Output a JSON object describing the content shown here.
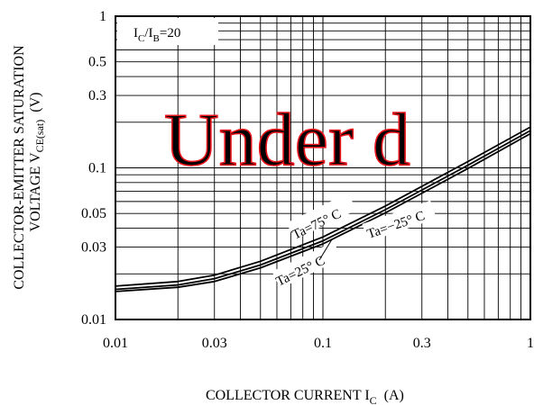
{
  "chart_data": {
    "type": "line",
    "x_scale": "log",
    "y_scale": "log",
    "xlim": [
      0.01,
      1
    ],
    "ylim": [
      0.01,
      1
    ],
    "grid": true,
    "xlabel": {
      "main": "COLLECTOR CURRENT I",
      "sub": "C",
      "unit": "(A)"
    },
    "ylabel": {
      "line1": "COLLECTOR-EMITTER SATURATION",
      "line2_main": "VOLTAGE V",
      "line2_sub": "CE(sat)",
      "line2_unit": "(V)"
    },
    "x_ticks": [
      {
        "value": 0.01,
        "label": "0.01"
      },
      {
        "value": 0.03,
        "label": "0.03"
      },
      {
        "value": 0.1,
        "label": "0.1"
      },
      {
        "value": 0.3,
        "label": "0.3"
      },
      {
        "value": 1,
        "label": "1"
      }
    ],
    "y_ticks": [
      {
        "value": 0.01,
        "label": "0.01"
      },
      {
        "value": 0.03,
        "label": "0.03"
      },
      {
        "value": 0.05,
        "label": "0.05"
      },
      {
        "value": 0.1,
        "label": "0.1"
      },
      {
        "value": 0.3,
        "label": "0.3"
      },
      {
        "value": 0.5,
        "label": "0.5"
      },
      {
        "value": 1,
        "label": "1"
      }
    ],
    "condition": {
      "main": "I",
      "sub1": "C",
      "slash": "/I",
      "sub2": "B",
      "value": "=20"
    },
    "watermark": "Under d",
    "series": [
      {
        "name": "Ta=75° C",
        "points": [
          [
            0.01,
            0.0166
          ],
          [
            0.02,
            0.0178
          ],
          [
            0.03,
            0.0196
          ],
          [
            0.05,
            0.0242
          ],
          [
            0.1,
            0.035
          ],
          [
            0.2,
            0.056
          ],
          [
            0.5,
            0.11
          ],
          [
            1,
            0.186
          ]
        ]
      },
      {
        "name": "Ta=25° C",
        "points": [
          [
            0.01,
            0.0158
          ],
          [
            0.02,
            0.0169
          ],
          [
            0.03,
            0.0186
          ],
          [
            0.05,
            0.0229
          ],
          [
            0.1,
            0.033
          ],
          [
            0.2,
            0.053
          ],
          [
            0.5,
            0.104
          ],
          [
            1,
            0.176
          ]
        ]
      },
      {
        "name": "Ta=−25° C",
        "points": [
          [
            0.01,
            0.0153
          ],
          [
            0.02,
            0.0163
          ],
          [
            0.03,
            0.0178
          ],
          [
            0.05,
            0.0219
          ],
          [
            0.1,
            0.0315
          ],
          [
            0.2,
            0.0505
          ],
          [
            0.5,
            0.099
          ],
          [
            1,
            0.168
          ]
        ]
      }
    ]
  }
}
